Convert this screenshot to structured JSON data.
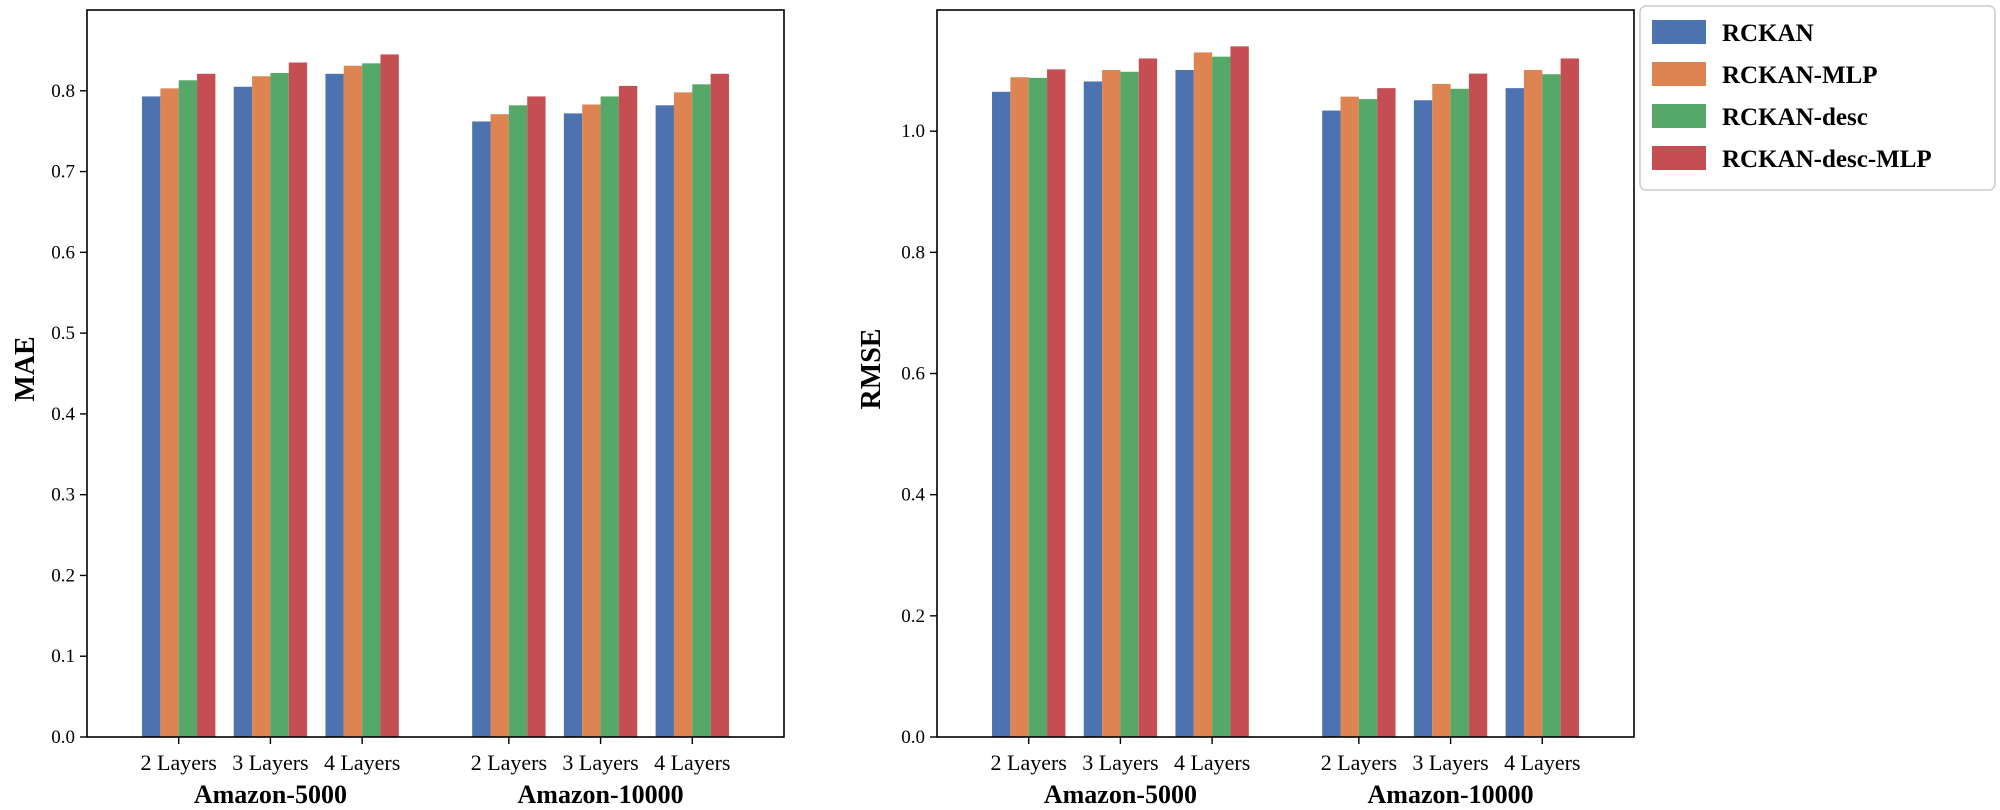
{
  "chart_data": [
    {
      "type": "bar",
      "ylabel": "MAE",
      "ylim": [
        0,
        0.9
      ],
      "yticks": [
        "0.0",
        "0.1",
        "0.2",
        "0.3",
        "0.4",
        "0.5",
        "0.6",
        "0.7",
        "0.8"
      ],
      "categories": [
        "2 Layers",
        "3 Layers",
        "4 Layers",
        "2 Layers",
        "3 Layers",
        "4 Layers"
      ],
      "groups": [
        "Amazon-5000",
        "Amazon-10000"
      ],
      "series": [
        {
          "name": "RCKAN",
          "color": "#4c72b0",
          "values": [
            0.793,
            0.805,
            0.821,
            0.762,
            0.772,
            0.782
          ]
        },
        {
          "name": "RCKAN-MLP",
          "color": "#dd8452",
          "values": [
            0.803,
            0.818,
            0.831,
            0.771,
            0.783,
            0.798
          ]
        },
        {
          "name": "RCKAN-desc",
          "color": "#55a868",
          "values": [
            0.813,
            0.822,
            0.834,
            0.782,
            0.793,
            0.808
          ]
        },
        {
          "name": "RCKAN-desc-MLP",
          "color": "#c44e52",
          "values": [
            0.821,
            0.835,
            0.845,
            0.793,
            0.806,
            0.821
          ]
        }
      ]
    },
    {
      "type": "bar",
      "ylabel": "RMSE",
      "ylim": [
        0,
        1.2
      ],
      "yticks": [
        "0.0",
        "0.2",
        "0.4",
        "0.6",
        "0.8",
        "1.0"
      ],
      "categories": [
        "2 Layers",
        "3 Layers",
        "4 Layers",
        "2 Layers",
        "3 Layers",
        "4 Layers"
      ],
      "groups": [
        "Amazon-5000",
        "Amazon-10000"
      ],
      "series": [
        {
          "name": "RCKAN",
          "color": "#4c72b0",
          "values": [
            1.065,
            1.082,
            1.101,
            1.034,
            1.051,
            1.071
          ]
        },
        {
          "name": "RCKAN-MLP",
          "color": "#dd8452",
          "values": [
            1.089,
            1.101,
            1.13,
            1.057,
            1.078,
            1.101
          ]
        },
        {
          "name": "RCKAN-desc",
          "color": "#55a868",
          "values": [
            1.088,
            1.098,
            1.123,
            1.053,
            1.07,
            1.094
          ]
        },
        {
          "name": "RCKAN-desc-MLP",
          "color": "#c44e52",
          "values": [
            1.102,
            1.12,
            1.14,
            1.071,
            1.095,
            1.12
          ]
        }
      ]
    }
  ],
  "legend": {
    "placement": "outside-right-top",
    "items": [
      {
        "label": "RCKAN",
        "color": "#4c72b0"
      },
      {
        "label": "RCKAN-MLP",
        "color": "#dd8452"
      },
      {
        "label": "RCKAN-desc",
        "color": "#55a868"
      },
      {
        "label": "RCKAN-desc-MLP",
        "color": "#c44e52"
      }
    ]
  }
}
